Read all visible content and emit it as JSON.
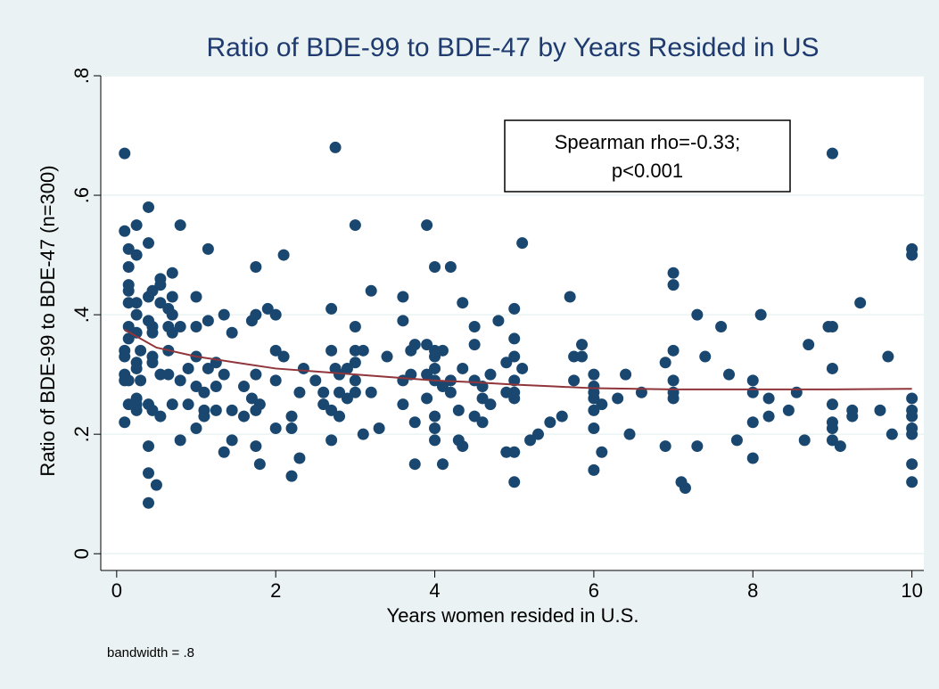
{
  "chart_data": {
    "type": "scatter",
    "title": "Ratio of BDE-99 to BDE-47 by Years Resided in US",
    "x_label": "Years women resided in U.S.",
    "y_label": "Ratio of BDE-99 to BDE-47 (n=300)",
    "annotation": [
      "Spearman rho=-0.33;",
      "p<0.001"
    ],
    "note": "bandwidth = .8",
    "color": "#1a476f",
    "xlim": [
      -0.2,
      10.15
    ],
    "ylim": [
      -0.028,
      0.8
    ],
    "xticks": [
      0,
      2,
      4,
      6,
      8,
      10
    ],
    "yticks": [
      0,
      {
        "value": 0.2,
        "label": ".2"
      },
      {
        "value": 0.4,
        "label": ".4"
      },
      {
        "value": 0.6,
        "label": ".6"
      },
      {
        "value": 0.8,
        "label": ".8"
      }
    ],
    "grid": true,
    "x": [
      0.1,
      0.1,
      0.1,
      0.1,
      0.1,
      0.1,
      0.1,
      0.15,
      0.15,
      0.15,
      0.15,
      0.15,
      0.15,
      0.15,
      0.15,
      0.15,
      0.25,
      0.25,
      0.25,
      0.25,
      0.25,
      0.25,
      0.25,
      0.25,
      0.25,
      0.25,
      0.3,
      0.3,
      0.4,
      0.4,
      0.4,
      0.4,
      0.4,
      0.4,
      0.4,
      0.4,
      0.45,
      0.45,
      0.45,
      0.45,
      0.45,
      0.45,
      0.5,
      0.55,
      0.55,
      0.55,
      0.55,
      0.55,
      0.65,
      0.65,
      0.65,
      0.65,
      0.7,
      0.7,
      0.7,
      0.7,
      0.7,
      0.8,
      0.8,
      0.8,
      0.8,
      0.9,
      0.9,
      1.0,
      1.0,
      1.0,
      1.0,
      1.0,
      1.1,
      1.1,
      1.1,
      1.15,
      1.15,
      1.15,
      1.25,
      1.25,
      1.25,
      1.35,
      1.35,
      1.35,
      1.45,
      1.45,
      1.45,
      1.6,
      1.6,
      1.7,
      1.7,
      1.75,
      1.75,
      1.75,
      1.75,
      1.75,
      1.8,
      1.8,
      1.9,
      2.0,
      2.0,
      2.0,
      2.0,
      2.1,
      2.1,
      2.2,
      2.2,
      2.2,
      2.3,
      2.3,
      2.35,
      2.5,
      2.6,
      2.6,
      2.7,
      2.7,
      2.7,
      2.7,
      2.75,
      2.75,
      2.8,
      2.8,
      2.8,
      2.9,
      2.9,
      3.0,
      3.0,
      3.0,
      3.0,
      3.0,
      3.0,
      3.1,
      3.1,
      3.2,
      3.2,
      3.3,
      3.4,
      3.6,
      3.6,
      3.6,
      3.6,
      3.7,
      3.7,
      3.75,
      3.75,
      3.75,
      3.9,
      3.9,
      3.9,
      3.9,
      4.0,
      4.0,
      4.0,
      4.0,
      4.0,
      4.0,
      4.0,
      4.0,
      4.1,
      4.1,
      4.1,
      4.2,
      4.2,
      4.2,
      4.3,
      4.3,
      4.35,
      4.35,
      4.35,
      4.5,
      4.5,
      4.5,
      4.5,
      4.6,
      4.6,
      4.6,
      4.7,
      4.7,
      4.8,
      4.9,
      4.9,
      4.9,
      5.0,
      5.0,
      5.0,
      5.0,
      5.0,
      5.0,
      5.0,
      5.0,
      5.1,
      5.1,
      5.2,
      5.3,
      5.45,
      5.6,
      5.7,
      5.75,
      5.75,
      5.85,
      5.85,
      6.0,
      6.0,
      6.0,
      6.0,
      6.0,
      6.0,
      6.0,
      6.1,
      6.1,
      6.3,
      6.4,
      6.45,
      6.6,
      6.9,
      6.9,
      7.0,
      7.0,
      7.0,
      7.0,
      7.0,
      7.0,
      7.1,
      7.15,
      7.3,
      7.3,
      7.4,
      7.6,
      7.7,
      7.8,
      8.0,
      8.0,
      8.0,
      8.0,
      8.1,
      8.2,
      8.2,
      8.45,
      8.55,
      8.65,
      8.7,
      8.95,
      9.0,
      9.0,
      9.0,
      9.0,
      9.0,
      9.0,
      9.0,
      9.1,
      9.25,
      9.25,
      9.35,
      9.6,
      9.7,
      9.75,
      10,
      10,
      10,
      10,
      10,
      10,
      10,
      10,
      10
    ],
    "values": [
      0.67,
      0.54,
      0.34,
      0.33,
      0.3,
      0.29,
      0.22,
      0.51,
      0.48,
      0.45,
      0.44,
      0.42,
      0.38,
      0.36,
      0.29,
      0.25,
      0.55,
      0.5,
      0.42,
      0.4,
      0.37,
      0.32,
      0.31,
      0.26,
      0.25,
      0.24,
      0.34,
      0.29,
      0.58,
      0.52,
      0.43,
      0.39,
      0.25,
      0.18,
      0.135,
      0.085,
      0.44,
      0.38,
      0.37,
      0.33,
      0.32,
      0.24,
      0.115,
      0.46,
      0.45,
      0.42,
      0.3,
      0.23,
      0.41,
      0.38,
      0.34,
      0.3,
      0.47,
      0.43,
      0.4,
      0.37,
      0.25,
      0.55,
      0.38,
      0.29,
      0.19,
      0.31,
      0.25,
      0.43,
      0.38,
      0.33,
      0.28,
      0.21,
      0.27,
      0.24,
      0.23,
      0.51,
      0.39,
      0.31,
      0.32,
      0.28,
      0.24,
      0.4,
      0.3,
      0.17,
      0.37,
      0.24,
      0.19,
      0.28,
      0.23,
      0.39,
      0.26,
      0.48,
      0.4,
      0.3,
      0.24,
      0.18,
      0.25,
      0.15,
      0.41,
      0.4,
      0.34,
      0.29,
      0.21,
      0.5,
      0.33,
      0.23,
      0.21,
      0.13,
      0.27,
      0.16,
      0.31,
      0.29,
      0.27,
      0.25,
      0.41,
      0.34,
      0.24,
      0.19,
      0.68,
      0.31,
      0.3,
      0.27,
      0.23,
      0.31,
      0.26,
      0.55,
      0.38,
      0.34,
      0.32,
      0.29,
      0.27,
      0.34,
      0.2,
      0.44,
      0.27,
      0.21,
      0.33,
      0.43,
      0.39,
      0.29,
      0.25,
      0.34,
      0.3,
      0.35,
      0.22,
      0.15,
      0.55,
      0.35,
      0.3,
      0.26,
      0.48,
      0.34,
      0.33,
      0.31,
      0.29,
      0.23,
      0.21,
      0.19,
      0.34,
      0.28,
      0.15,
      0.48,
      0.29,
      0.27,
      0.24,
      0.19,
      0.42,
      0.31,
      0.18,
      0.38,
      0.35,
      0.29,
      0.23,
      0.28,
      0.26,
      0.22,
      0.3,
      0.25,
      0.39,
      0.32,
      0.27,
      0.17,
      0.41,
      0.36,
      0.33,
      0.29,
      0.27,
      0.26,
      0.17,
      0.12,
      0.52,
      0.31,
      0.19,
      0.2,
      0.22,
      0.23,
      0.43,
      0.33,
      0.29,
      0.35,
      0.33,
      0.3,
      0.28,
      0.27,
      0.26,
      0.24,
      0.21,
      0.14,
      0.25,
      0.17,
      0.26,
      0.3,
      0.2,
      0.27,
      0.32,
      0.18,
      0.47,
      0.45,
      0.34,
      0.29,
      0.27,
      0.26,
      0.12,
      0.11,
      0.4,
      0.18,
      0.33,
      0.38,
      0.3,
      0.19,
      0.29,
      0.27,
      0.22,
      0.16,
      0.4,
      0.26,
      0.23,
      0.24,
      0.27,
      0.19,
      0.35,
      0.38,
      0.67,
      0.38,
      0.31,
      0.25,
      0.22,
      0.21,
      0.19,
      0.18,
      0.24,
      0.23,
      0.42,
      0.24,
      0.33,
      0.2,
      0.51,
      0.5,
      0.26,
      0.24,
      0.23,
      0.21,
      0.2,
      0.15,
      0.12
    ],
    "fit": {
      "color": "#90353b",
      "x": [
        0.1,
        0.5,
        1,
        1.5,
        2,
        2.5,
        3,
        3.5,
        4,
        4.5,
        5,
        5.5,
        6,
        7,
        8,
        9,
        10
      ],
      "values": [
        0.375,
        0.345,
        0.33,
        0.32,
        0.31,
        0.305,
        0.3,
        0.295,
        0.29,
        0.287,
        0.283,
        0.28,
        0.277,
        0.275,
        0.275,
        0.275,
        0.276
      ]
    }
  }
}
